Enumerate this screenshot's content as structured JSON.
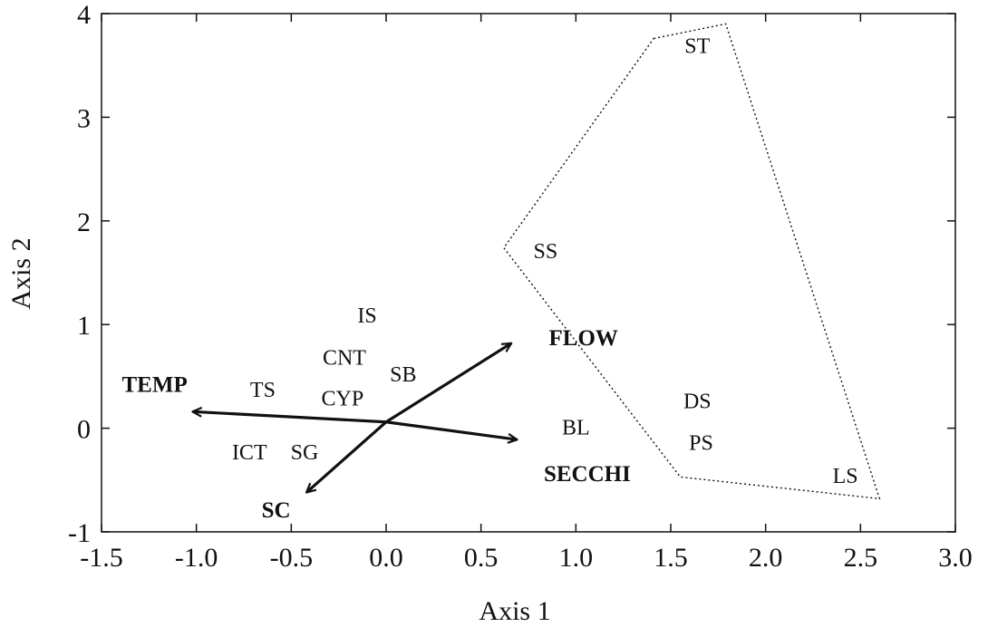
{
  "chart_data": {
    "type": "scatter",
    "title": "",
    "xlabel": "Axis 1",
    "ylabel": "Axis 2",
    "xlim": [
      -1.5,
      3.0
    ],
    "ylim": [
      -1,
      4
    ],
    "x_ticks": [
      {
        "value": -1.5,
        "label": "-1.5"
      },
      {
        "value": -1.0,
        "label": "-1.0"
      },
      {
        "value": -0.5,
        "label": "-0.5"
      },
      {
        "value": 0.0,
        "label": "0.0"
      },
      {
        "value": 0.5,
        "label": "0.5"
      },
      {
        "value": 1.0,
        "label": "1.0"
      },
      {
        "value": 1.5,
        "label": "1.5"
      },
      {
        "value": 2.0,
        "label": "2.0"
      },
      {
        "value": 2.5,
        "label": "2.5"
      },
      {
        "value": 3.0,
        "label": "3.0"
      }
    ],
    "y_ticks": [
      {
        "value": -1,
        "label": "-1"
      },
      {
        "value": 0,
        "label": "0"
      },
      {
        "value": 1,
        "label": "1"
      },
      {
        "value": 2,
        "label": "2"
      },
      {
        "value": 3,
        "label": "3"
      },
      {
        "value": 4,
        "label": "4"
      }
    ],
    "grid": false,
    "points": [
      {
        "label": "ST",
        "x": 1.64,
        "y": 3.7
      },
      {
        "label": "SS",
        "x": 0.84,
        "y": 1.72
      },
      {
        "label": "IS",
        "x": -0.1,
        "y": 1.1
      },
      {
        "label": "CNT",
        "x": -0.22,
        "y": 0.69
      },
      {
        "label": "SB",
        "x": 0.09,
        "y": 0.53
      },
      {
        "label": "TS",
        "x": -0.65,
        "y": 0.38
      },
      {
        "label": "CYP",
        "x": -0.23,
        "y": 0.3
      },
      {
        "label": "BL",
        "x": 1.0,
        "y": 0.02
      },
      {
        "label": "DS",
        "x": 1.64,
        "y": 0.27
      },
      {
        "label": "PS",
        "x": 1.66,
        "y": -0.13
      },
      {
        "label": "LS",
        "x": 2.42,
        "y": -0.45
      },
      {
        "label": "ICT",
        "x": -0.72,
        "y": -0.22
      },
      {
        "label": "SG",
        "x": -0.43,
        "y": -0.22
      }
    ],
    "vectors": [
      {
        "label": "FLOW",
        "from": [
          0.0,
          0.06
        ],
        "to": [
          0.66,
          0.82
        ],
        "label_at": [
          1.04,
          0.88
        ]
      },
      {
        "label": "TEMP",
        "from": [
          0.0,
          0.06
        ],
        "to": [
          -1.02,
          0.16
        ],
        "label_at": [
          -1.22,
          0.43
        ]
      },
      {
        "label": "SECCHI",
        "from": [
          0.0,
          0.06
        ],
        "to": [
          0.69,
          -0.11
        ],
        "label_at": [
          1.06,
          -0.43
        ]
      },
      {
        "label": "SC",
        "from": [
          0.0,
          0.06
        ],
        "to": [
          -0.42,
          -0.62
        ],
        "label_at": [
          -0.58,
          -0.78
        ]
      }
    ],
    "hull": {
      "style": "dotted",
      "points": [
        [
          1.41,
          3.76
        ],
        [
          1.79,
          3.9
        ],
        [
          2.6,
          -0.68
        ],
        [
          1.55,
          -0.47
        ],
        [
          0.62,
          1.74
        ]
      ]
    }
  },
  "colors": {
    "ink": "#111111",
    "background": "#ffffff"
  }
}
